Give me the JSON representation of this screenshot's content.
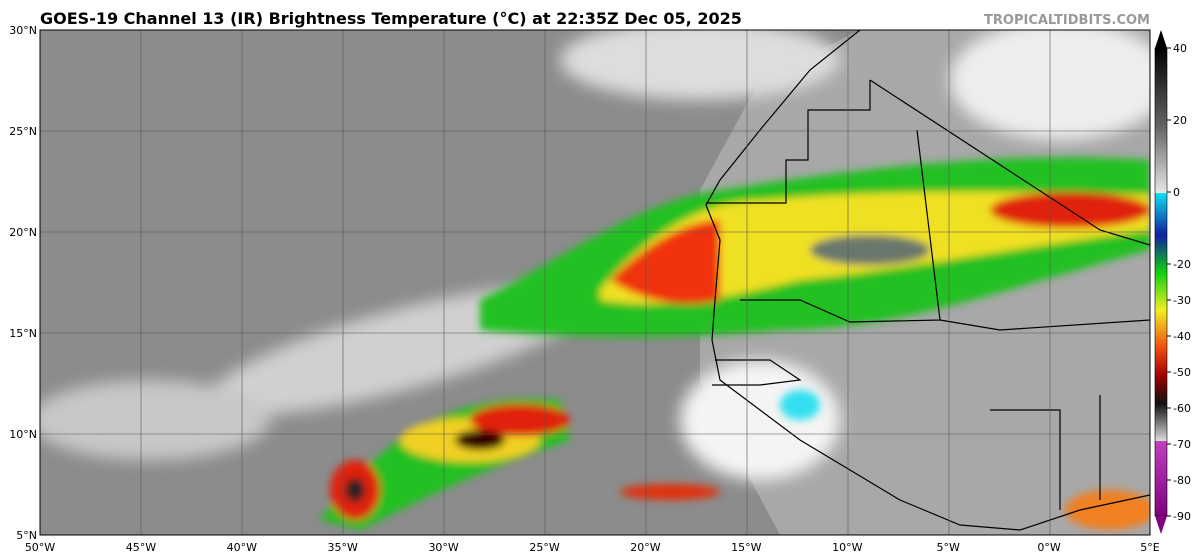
{
  "header": {
    "title": "GOES-19 Channel 13 (IR) Brightness Temperature (°C) at 22:35Z Dec 05, 2025",
    "credit": "TROPICALTIDBITS.COM"
  },
  "map": {
    "lat_labels": [
      "30°N",
      "25°N",
      "20°N",
      "15°N",
      "10°N",
      "5°N"
    ],
    "lon_labels": [
      "50°W",
      "45°W",
      "40°W",
      "35°W",
      "30°W",
      "25°W",
      "20°W",
      "15°W",
      "10°W",
      "5°W",
      "0°W",
      "5°E"
    ]
  },
  "colorbar": {
    "ticks": [
      40,
      20,
      0,
      -20,
      -30,
      -40,
      -50,
      -60,
      -70,
      -80,
      -90
    ]
  }
}
